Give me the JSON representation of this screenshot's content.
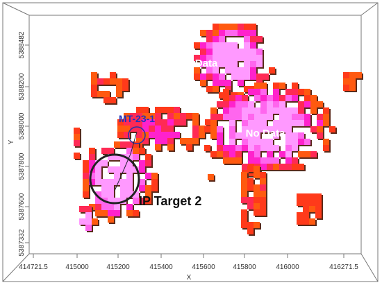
{
  "x_axis": {
    "title": "X",
    "ticks": [
      "414721.5",
      "415000",
      "415200",
      "415400",
      "415600",
      "415800",
      "416000",
      "416271.5"
    ]
  },
  "y_axis": {
    "title": "Y",
    "ticks": [
      "5388482",
      "5388200",
      "5388000",
      "5387800",
      "5387600",
      "5387332"
    ]
  },
  "annotations": {
    "no_data_1": "No Data",
    "no_data_2": "No Data",
    "well": "MT-23-1",
    "target": "IP Target 2"
  }
}
